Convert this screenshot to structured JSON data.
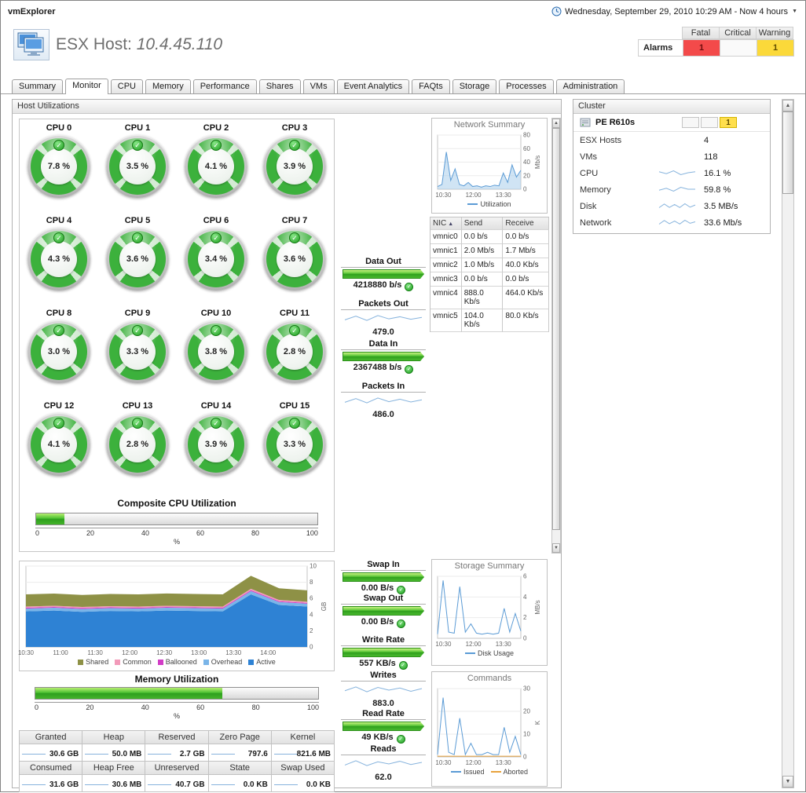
{
  "app": {
    "title": "vmExplorer",
    "time_range": "Wednesday, September 29, 2010 10:29 AM - Now 4 hours"
  },
  "icons": {
    "check": "✓",
    "sort_asc": "▲",
    "caret_down": "▼",
    "scroll_up": "▲",
    "scroll_down": "▼"
  },
  "header": {
    "title": "ESX Host:",
    "host": "10.4.45.110",
    "alarms": {
      "label": "Alarms",
      "columns": [
        "Fatal",
        "Critical",
        "Warning"
      ],
      "fatal": "1",
      "critical": "",
      "warning": "1"
    }
  },
  "tabs": {
    "items": [
      {
        "label": "Summary",
        "active": false
      },
      {
        "label": "Monitor",
        "active": true
      },
      {
        "label": "CPU",
        "active": false
      },
      {
        "label": "Memory",
        "active": false
      },
      {
        "label": "Performance",
        "active": false
      },
      {
        "label": "Shares",
        "active": false
      },
      {
        "label": "VMs",
        "active": false
      },
      {
        "label": "Event Analytics",
        "active": false
      },
      {
        "label": "FAQts",
        "active": false
      },
      {
        "label": "Storage",
        "active": false
      },
      {
        "label": "Processes",
        "active": false
      },
      {
        "label": "Administration",
        "active": false
      }
    ]
  },
  "host_utilizations": {
    "title": "Host Utilizations",
    "cpu_gauges": [
      {
        "label": "CPU 0",
        "value": "7.8 %"
      },
      {
        "label": "CPU 1",
        "value": "3.5 %"
      },
      {
        "label": "CPU 2",
        "value": "4.1 %"
      },
      {
        "label": "CPU 3",
        "value": "3.9 %"
      },
      {
        "label": "CPU 4",
        "value": "4.3 %"
      },
      {
        "label": "CPU 5",
        "value": "3.6 %"
      },
      {
        "label": "CPU 6",
        "value": "3.4 %"
      },
      {
        "label": "CPU 7",
        "value": "3.6 %"
      },
      {
        "label": "CPU 8",
        "value": "3.0 %"
      },
      {
        "label": "CPU 9",
        "value": "3.3 %"
      },
      {
        "label": "CPU 10",
        "value": "3.8 %"
      },
      {
        "label": "CPU 11",
        "value": "2.8 %"
      },
      {
        "label": "CPU 12",
        "value": "4.1 %"
      },
      {
        "label": "CPU 13",
        "value": "2.8 %"
      },
      {
        "label": "CPU 14",
        "value": "3.9 %"
      },
      {
        "label": "CPU 15",
        "value": "3.3 %"
      }
    ],
    "composite_cpu": {
      "title": "Composite CPU Utilization",
      "percent": 10,
      "ticks": [
        "0",
        "20",
        "40",
        "60",
        "80",
        "100"
      ],
      "unit": "%"
    },
    "memory_utilization": {
      "title": "Memory Utilization",
      "percent": 66,
      "ticks": [
        "0",
        "20",
        "40",
        "60",
        "80",
        "100"
      ],
      "unit": "%"
    },
    "network_io": {
      "data_out": {
        "label": "Data Out",
        "value": "4218880 b/s"
      },
      "packets_out": {
        "label": "Packets Out",
        "value": "479.0"
      },
      "data_in": {
        "label": "Data In",
        "value": "2367488 b/s"
      },
      "packets_in": {
        "label": "Packets In",
        "value": "486.0"
      }
    },
    "disk_io": {
      "swap_in": {
        "label": "Swap In",
        "value": "0.00 B/s"
      },
      "swap_out": {
        "label": "Swap Out",
        "value": "0.00 B/s"
      },
      "write_rate": {
        "label": "Write Rate",
        "value": "557 KB/s"
      },
      "writes": {
        "label": "Writes",
        "value": "883.0"
      },
      "read_rate": {
        "label": "Read Rate",
        "value": "49 KB/s"
      },
      "reads": {
        "label": "Reads",
        "value": "62.0"
      }
    },
    "nic_table": {
      "columns": [
        "NIC",
        "Send",
        "Receive"
      ],
      "rows": [
        [
          "vmnic0",
          "0.0 b/s",
          "0.0 b/s"
        ],
        [
          "vmnic1",
          "2.0 Mb/s",
          "1.7 Mb/s"
        ],
        [
          "vmnic2",
          "1.0 Mb/s",
          "40.0 Kb/s"
        ],
        [
          "vmnic3",
          "0.0 b/s",
          "0.0 b/s"
        ],
        [
          "vmnic4",
          "888.0 Kb/s",
          "464.0 Kb/s"
        ],
        [
          "vmnic5",
          "104.0 Kb/s",
          "80.0 Kb/s"
        ]
      ]
    },
    "memory_table": {
      "columns": [
        {
          "h1": "Granted",
          "v1": "30.6 GB",
          "s1": "charts.spark_granted",
          "h2": "Consumed",
          "v2": "31.6 GB",
          "s2": "charts.spark_consumed"
        },
        {
          "h1": "Heap",
          "v1": "50.0 MB",
          "s1": "charts.spark_heap",
          "h2": "Heap Free",
          "v2": "30.6 MB",
          "s2": "charts.spark_heap_free"
        },
        {
          "h1": "Reserved",
          "v1": "2.7 GB",
          "s1": "charts.spark_reserved",
          "h2": "Unreserved",
          "v2": "40.7 GB",
          "s2": "charts.spark_unreserved"
        },
        {
          "h1": "Zero Page",
          "v1": "797.6",
          "s1": "charts.spark_zero_page",
          "h2": "State",
          "v2": "0.0 KB",
          "s2": "charts.spark_state"
        },
        {
          "h1": "Kernel",
          "v1": "821.6 MB",
          "s1": "charts.spark_kernel",
          "h2": "Swap Used",
          "v2": "0.0 KB",
          "s2": "charts.spark_swap_used"
        }
      ]
    }
  },
  "cluster": {
    "title": "Cluster",
    "name": "PE R610s",
    "alarm_boxes": {
      "fatal": "",
      "critical": "",
      "warning": "1"
    },
    "rows": [
      {
        "label": "ESX Hosts",
        "value": "4",
        "spark": ""
      },
      {
        "label": "VMs",
        "value": "118",
        "spark": ""
      },
      {
        "label": "CPU",
        "value": "16.1 %",
        "spark": "charts.spark_cluster_cpu"
      },
      {
        "label": "Memory",
        "value": "59.8 %",
        "spark": "charts.spark_cluster_memory"
      },
      {
        "label": "Disk",
        "value": "3.5 MB/s",
        "spark": "charts.spark_cluster_disk"
      },
      {
        "label": "Network",
        "value": "33.6 Mb/s",
        "spark": "charts.spark_cluster_network"
      }
    ]
  },
  "charts": {
    "network_summary": {
      "title": "Network Summary",
      "type": "line",
      "ylim": [
        0,
        80
      ],
      "yticks": [
        0,
        20,
        40,
        60,
        80
      ],
      "ylabel": "Mb/s",
      "xticks": [
        {
          "label": "10:30",
          "pos": 0.07
        },
        {
          "label": "12:00",
          "pos": 0.43
        },
        {
          "label": "13:30",
          "pos": 0.79
        }
      ],
      "series": [
        {
          "name": "Utilization",
          "color": "#5b9bd5",
          "fill": "rgba(170,205,235,0.55)",
          "values": [
            4,
            7,
            55,
            13,
            30,
            7,
            5,
            10,
            4,
            5,
            3,
            5,
            4,
            6,
            5,
            24,
            10,
            36,
            18,
            28
          ]
        }
      ],
      "legend": [
        {
          "label": "Utilization",
          "color": "#5b9bd5"
        }
      ]
    },
    "memory_history": {
      "type": "stacked",
      "ylim": [
        0,
        10
      ],
      "yticks": [
        0,
        2,
        4,
        6,
        8,
        10
      ],
      "ylabel": "GB",
      "xticks": [
        {
          "label": "10:30",
          "pos": 0
        },
        {
          "label": "11:00",
          "pos": 0.123
        },
        {
          "label": "11:30",
          "pos": 0.246
        },
        {
          "label": "12:00",
          "pos": 0.369
        },
        {
          "label": "12:30",
          "pos": 0.492
        },
        {
          "label": "13:00",
          "pos": 0.615
        },
        {
          "label": "13:30",
          "pos": 0.738
        },
        {
          "label": "14:00",
          "pos": 0.861
        }
      ],
      "series": [
        {
          "name": "Active",
          "color": "#2e82d4",
          "values": [
            4.4,
            4.5,
            4.35,
            4.45,
            4.4,
            4.5,
            4.45,
            4.4,
            6.5,
            5.2,
            5.0
          ]
        },
        {
          "name": "Overhead",
          "color": "#7ab5e8",
          "values": [
            0.35,
            0.35,
            0.35,
            0.35,
            0.35,
            0.35,
            0.35,
            0.35,
            0.4,
            0.36,
            0.35
          ]
        },
        {
          "name": "Ballooned",
          "color": "#d23cc6",
          "values": [
            0.1,
            0.1,
            0.1,
            0.1,
            0.1,
            0.1,
            0.1,
            0.1,
            0.12,
            0.1,
            0.1
          ]
        },
        {
          "name": "Common",
          "color": "#f29ab9",
          "values": [
            0.15,
            0.15,
            0.15,
            0.15,
            0.15,
            0.15,
            0.15,
            0.15,
            0.18,
            0.15,
            0.15
          ]
        },
        {
          "name": "Shared",
          "color": "#8e9146",
          "values": [
            1.5,
            1.5,
            1.48,
            1.5,
            1.5,
            1.52,
            1.5,
            1.5,
            1.6,
            1.45,
            1.4
          ]
        }
      ],
      "legend": [
        {
          "label": "Shared",
          "color": "#8e9146"
        },
        {
          "label": "Common",
          "color": "#f29ab9"
        },
        {
          "label": "Ballooned",
          "color": "#d23cc6"
        },
        {
          "label": "Overhead",
          "color": "#7ab5e8"
        },
        {
          "label": "Active",
          "color": "#2e82d4"
        }
      ]
    },
    "storage_summary": {
      "title": "Storage Summary",
      "type": "line",
      "ylim": [
        0,
        6
      ],
      "yticks": [
        0,
        2,
        4,
        6
      ],
      "ylabel": "MB/s",
      "xticks": [
        {
          "label": "10:30",
          "pos": 0.07
        },
        {
          "label": "12:00",
          "pos": 0.43
        },
        {
          "label": "13:30",
          "pos": 0.79
        }
      ],
      "series": [
        {
          "name": "Disk Usage",
          "color": "#5b9bd5",
          "values": [
            0.4,
            5.6,
            0.6,
            0.5,
            5.0,
            0.6,
            1.4,
            0.5,
            0.4,
            0.5,
            0.4,
            0.5,
            2.9,
            0.6,
            2.4,
            0.7
          ]
        }
      ],
      "legend": [
        {
          "label": "Disk Usage",
          "color": "#5b9bd5"
        }
      ]
    },
    "commands": {
      "title": "Commands",
      "type": "line",
      "ylim": [
        0,
        30
      ],
      "yticks": [
        0,
        10,
        20,
        30
      ],
      "ylabel": "K",
      "xticks": [
        {
          "label": "10:30",
          "pos": 0.07
        },
        {
          "label": "12:00",
          "pos": 0.43
        },
        {
          "label": "13:30",
          "pos": 0.79
        }
      ],
      "series": [
        {
          "name": "Issued",
          "color": "#5b9bd5",
          "values": [
            1,
            26,
            2,
            1,
            17,
            1,
            6,
            1,
            1,
            2,
            1,
            1,
            13,
            2,
            9,
            1
          ]
        },
        {
          "name": "Aborted",
          "color": "#e8a33d",
          "values": [
            0.3,
            0.3,
            0.3,
            0.3,
            0.3,
            0.3,
            0.3,
            0.3,
            0.3,
            0.3,
            0.3,
            0.3,
            0.3,
            0.3,
            0.3,
            0.3
          ]
        }
      ],
      "legend": [
        {
          "label": "Issued",
          "color": "#5b9bd5"
        },
        {
          "label": "Aborted",
          "color": "#e8a33d"
        }
      ]
    },
    "packets_out": {
      "type": "sparkline",
      "color": "#86b3dd",
      "values": [
        472,
        484,
        470,
        486,
        475,
        482,
        474,
        480
      ]
    },
    "packets_in": {
      "type": "sparkline",
      "color": "#86b3dd",
      "values": [
        478,
        490,
        476,
        492,
        480,
        488,
        479,
        486
      ]
    },
    "writes": {
      "type": "sparkline",
      "color": "#86b3dd",
      "values": [
        870,
        905,
        860,
        900,
        875,
        895,
        865,
        890
      ]
    },
    "reads": {
      "type": "sparkline",
      "color": "#86b3dd",
      "values": [
        58,
        66,
        57,
        64,
        60,
        65,
        59,
        63
      ]
    },
    "spark_granted": {
      "type": "sparkline",
      "color": "#86b3dd",
      "values": [
        30.6,
        30.6,
        30.6,
        30.6,
        30.6
      ]
    },
    "spark_heap": {
      "type": "sparkline",
      "color": "#86b3dd",
      "values": [
        50,
        50,
        50,
        50,
        50
      ]
    },
    "spark_reserved": {
      "type": "sparkline",
      "color": "#86b3dd",
      "values": [
        2.7,
        2.7,
        2.7,
        2.7,
        2.7
      ]
    },
    "spark_zero_page": {
      "type": "sparkline",
      "color": "#86b3dd",
      "values": [
        797.6,
        797.6,
        797.6,
        797.6,
        797.6
      ]
    },
    "spark_kernel": {
      "type": "sparkline",
      "color": "#86b3dd",
      "values": [
        821.6,
        821.6,
        821.6,
        821.6,
        821.6
      ]
    },
    "spark_consumed": {
      "type": "sparkline",
      "color": "#86b3dd",
      "values": [
        31.6,
        31.6,
        31.6,
        31.6,
        31.6
      ]
    },
    "spark_heap_free": {
      "type": "sparkline",
      "color": "#86b3dd",
      "values": [
        30.6,
        30.6,
        30.6,
        30.6,
        30.6
      ]
    },
    "spark_unreserved": {
      "type": "sparkline",
      "color": "#86b3dd",
      "values": [
        40.7,
        40.7,
        40.7,
        40.7,
        40.7
      ]
    },
    "spark_state": {
      "type": "sparkline",
      "color": "#86b3dd",
      "values": [
        0,
        0,
        0,
        0,
        0
      ]
    },
    "spark_swap_used": {
      "type": "sparkline",
      "color": "#86b3dd",
      "values": [
        0,
        0,
        0,
        0,
        0
      ]
    },
    "spark_cluster_cpu": {
      "type": "sparkline",
      "color": "#86b3dd",
      "values": [
        16.2,
        16.0,
        16.3,
        15.9,
        16.1,
        16.2
      ]
    },
    "spark_cluster_memory": {
      "type": "sparkline",
      "color": "#86b3dd",
      "values": [
        59.7,
        59.9,
        59.6,
        60.0,
        59.8,
        59.8
      ]
    },
    "spark_cluster_disk": {
      "type": "sparkline",
      "color": "#86b3dd",
      "values": [
        0.4,
        3.3,
        0.6,
        2.9,
        0.5,
        3.5,
        0.8,
        2.5
      ]
    },
    "spark_cluster_network": {
      "type": "sparkline",
      "color": "#86b3dd",
      "values": [
        6,
        31,
        9,
        27,
        7,
        33,
        12,
        22
      ]
    }
  }
}
